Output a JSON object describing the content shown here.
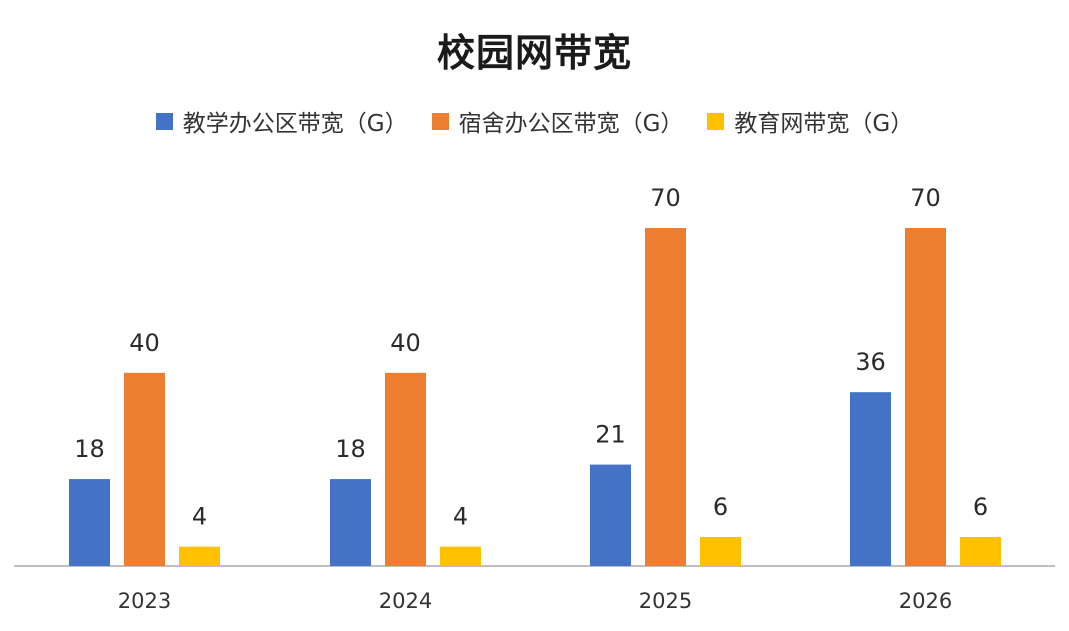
{
  "chart_data": {
    "type": "bar",
    "title": "校园网带宽",
    "categories": [
      "2023",
      "2024",
      "2025",
      "2026"
    ],
    "series": [
      {
        "name": "教学办公区带宽（G）",
        "values": [
          18,
          18,
          21,
          36
        ],
        "color": "#4472C4"
      },
      {
        "name": "宿舍办公区带宽（G）",
        "values": [
          40,
          40,
          70,
          70
        ],
        "color": "#ED7D31"
      },
      {
        "name": "教育网带宽（G）",
        "values": [
          4,
          4,
          6,
          6
        ],
        "color": "#FFC000"
      }
    ],
    "xlabel": "",
    "ylabel": "",
    "ylim": [
      0,
      70
    ],
    "grid": false,
    "legend_position": "top",
    "data_labels": true
  }
}
